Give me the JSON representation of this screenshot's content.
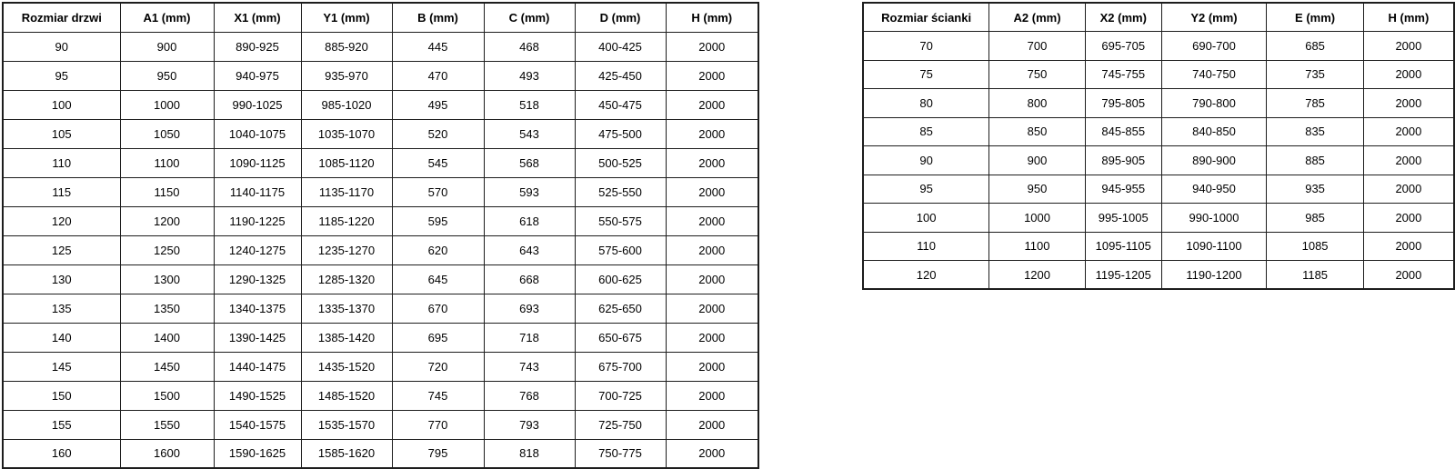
{
  "page": {
    "background": "#ffffff"
  },
  "colors": {
    "border": "#1d1d1d",
    "text": "#000000",
    "background": "#ffffff"
  },
  "tables": [
    {
      "name": "door-sizes",
      "headers": [
        "Rozmiar drzwi",
        "A1 (mm)",
        "X1 (mm)",
        "Y1 (mm)",
        "B (mm)",
        "C (mm)",
        "D (mm)",
        "H (mm)"
      ],
      "rows": [
        [
          "90",
          "900",
          "890-925",
          "885-920",
          "445",
          "468",
          "400-425",
          "2000"
        ],
        [
          "95",
          "950",
          "940-975",
          "935-970",
          "470",
          "493",
          "425-450",
          "2000"
        ],
        [
          "100",
          "1000",
          "990-1025",
          "985-1020",
          "495",
          "518",
          "450-475",
          "2000"
        ],
        [
          "105",
          "1050",
          "1040-1075",
          "1035-1070",
          "520",
          "543",
          "475-500",
          "2000"
        ],
        [
          "110",
          "1100",
          "1090-1125",
          "1085-1120",
          "545",
          "568",
          "500-525",
          "2000"
        ],
        [
          "115",
          "1150",
          "1140-1175",
          "1135-1170",
          "570",
          "593",
          "525-550",
          "2000"
        ],
        [
          "120",
          "1200",
          "1190-1225",
          "1185-1220",
          "595",
          "618",
          "550-575",
          "2000"
        ],
        [
          "125",
          "1250",
          "1240-1275",
          "1235-1270",
          "620",
          "643",
          "575-600",
          "2000"
        ],
        [
          "130",
          "1300",
          "1290-1325",
          "1285-1320",
          "645",
          "668",
          "600-625",
          "2000"
        ],
        [
          "135",
          "1350",
          "1340-1375",
          "1335-1370",
          "670",
          "693",
          "625-650",
          "2000"
        ],
        [
          "140",
          "1400",
          "1390-1425",
          "1385-1420",
          "695",
          "718",
          "650-675",
          "2000"
        ],
        [
          "145",
          "1450",
          "1440-1475",
          "1435-1520",
          "720",
          "743",
          "675-700",
          "2000"
        ],
        [
          "150",
          "1500",
          "1490-1525",
          "1485-1520",
          "745",
          "768",
          "700-725",
          "2000"
        ],
        [
          "155",
          "1550",
          "1540-1575",
          "1535-1570",
          "770",
          "793",
          "725-750",
          "2000"
        ],
        [
          "160",
          "1600",
          "1590-1625",
          "1585-1620",
          "795",
          "818",
          "750-775",
          "2000"
        ]
      ]
    },
    {
      "name": "wall-sizes",
      "headers": [
        "Rozmiar ścianki",
        "A2 (mm)",
        "X2 (mm)",
        "Y2 (mm)",
        "E (mm)",
        "H (mm)"
      ],
      "rows": [
        [
          "70",
          "700",
          "695-705",
          "690-700",
          "685",
          "2000"
        ],
        [
          "75",
          "750",
          "745-755",
          "740-750",
          "735",
          "2000"
        ],
        [
          "80",
          "800",
          "795-805",
          "790-800",
          "785",
          "2000"
        ],
        [
          "85",
          "850",
          "845-855",
          "840-850",
          "835",
          "2000"
        ],
        [
          "90",
          "900",
          "895-905",
          "890-900",
          "885",
          "2000"
        ],
        [
          "95",
          "950",
          "945-955",
          "940-950",
          "935",
          "2000"
        ],
        [
          "100",
          "1000",
          "995-1005",
          "990-1000",
          "985",
          "2000"
        ],
        [
          "110",
          "1100",
          "1095-1105",
          "1090-1100",
          "1085",
          "2000"
        ],
        [
          "120",
          "1200",
          "1195-1205",
          "1190-1200",
          "1185",
          "2000"
        ]
      ]
    }
  ]
}
